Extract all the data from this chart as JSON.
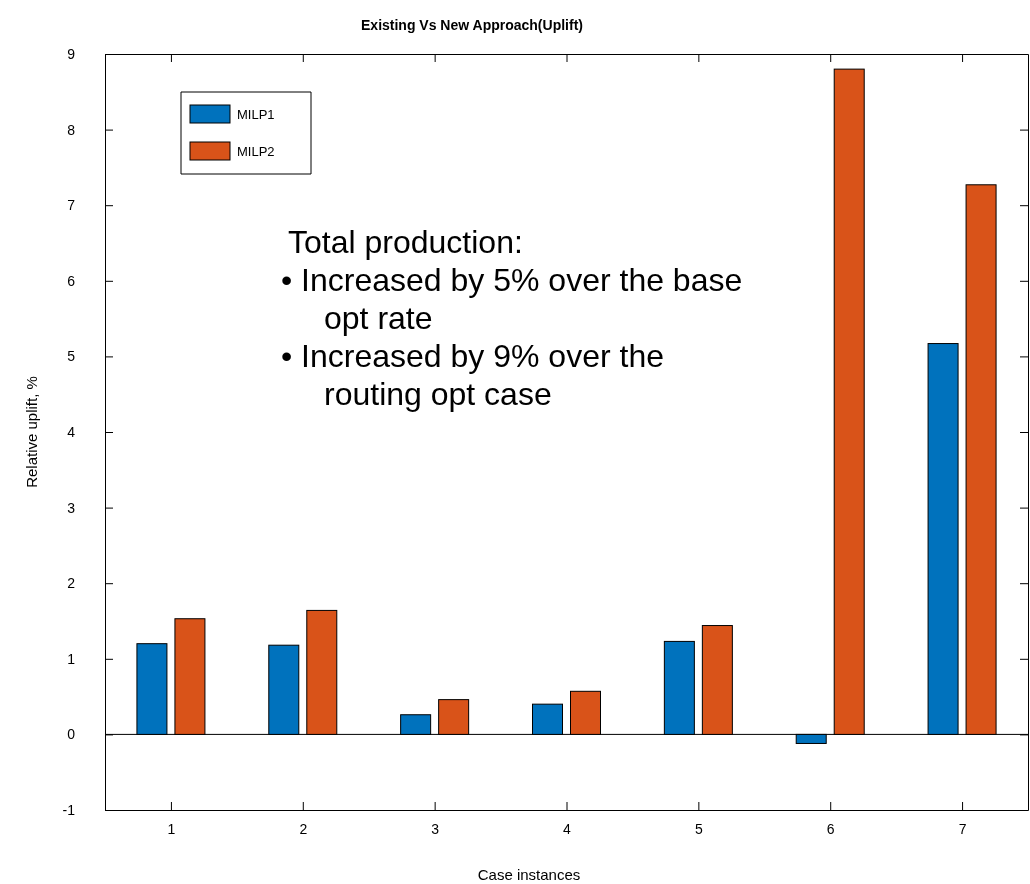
{
  "chart_data": {
    "type": "bar",
    "title": "Existing Vs New Approach(Uplift)",
    "xlabel": "Case instances",
    "ylabel": "Relative uplift, %",
    "categories": [
      "1",
      "2",
      "3",
      "4",
      "5",
      "6",
      "7"
    ],
    "series": [
      {
        "name": "MILP1",
        "color": "#0072bd",
        "values": [
          1.2,
          1.18,
          0.26,
          0.4,
          1.23,
          -0.12,
          5.17
        ]
      },
      {
        "name": "MILP2",
        "color": "#d95319",
        "values": [
          1.53,
          1.64,
          0.46,
          0.57,
          1.44,
          8.8,
          7.27
        ]
      }
    ],
    "ylim": [
      -1,
      9
    ],
    "yticks": [
      -1,
      0,
      1,
      2,
      3,
      4,
      5,
      6,
      7,
      8,
      9
    ],
    "legend": "top left",
    "annotations": [
      "Total production:",
      "• Increased by 5% over the base opt rate",
      "• Increased by 9% over the routing opt case"
    ]
  }
}
